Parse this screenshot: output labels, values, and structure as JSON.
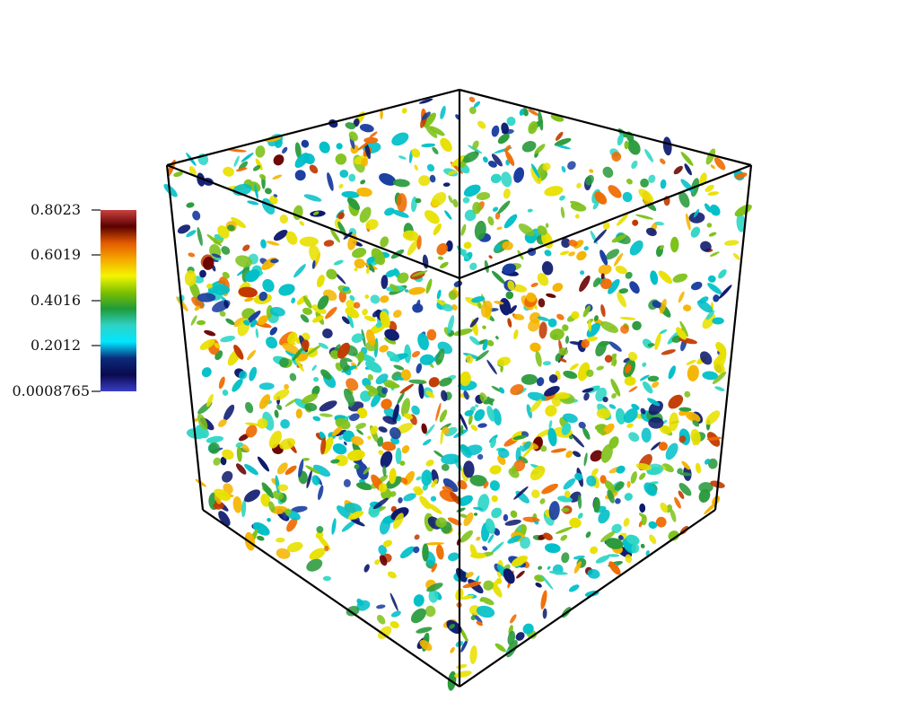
{
  "colorbar": {
    "ticks": [
      "0.8023",
      "0.6019",
      "0.4016",
      "0.2012",
      "0.0008765"
    ],
    "colors": [
      "#c9413f",
      "#5a0000",
      "#e35a00",
      "#f6a800",
      "#f3f500",
      "#7cc000",
      "#1f9b3a",
      "#2ed3c7",
      "#00e6ff",
      "#0a2a7a",
      "#0a0a50",
      "#3b3fc6"
    ]
  },
  "scene": {
    "description_colors": [
      "#0d1a6e",
      "#1a3ea0",
      "#00bfc8",
      "#2fd6c6",
      "#2a9a3c",
      "#7fc21b",
      "#e8e000",
      "#f5b400",
      "#ef6a00",
      "#c23a00",
      "#6a0000"
    ]
  }
}
